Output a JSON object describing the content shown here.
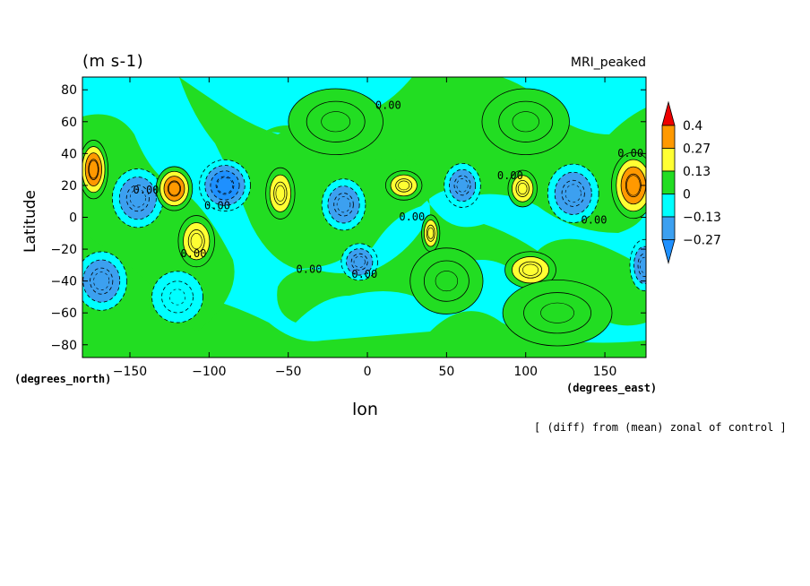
{
  "chart_data": {
    "type": "heatmap",
    "title_left": "(m s-1)",
    "title_right": "MRI_peaked",
    "xlabel": "lon",
    "ylabel": "Latitude",
    "x_units": "(degrees_east)",
    "y_units": "(degrees_north)",
    "caption": "[ (diff) from (mean) zonal of control ]",
    "xlim": [
      -180,
      176
    ],
    "ylim": [
      -88,
      88
    ],
    "x_ticks": [
      -150,
      -100,
      -50,
      0,
      50,
      100,
      150
    ],
    "y_ticks": [
      80,
      60,
      40,
      20,
      0,
      -20,
      -40,
      -60,
      -80
    ],
    "contour_label": "0.00",
    "colorbar": {
      "levels": [
        -0.27,
        -0.13,
        0,
        0.13,
        0.27,
        0.4
      ],
      "labels": [
        "0.4",
        "0.27",
        "0.13",
        "0",
        "−0.13",
        "−0.27"
      ],
      "colors": {
        "below_-0.27": "#1e90ff",
        "-0.27_to_-0.13": "#3ca0f0",
        "-0.13_to_0": "#00ffff",
        "0_to_0.13": "#22dd22",
        "0.13_to_0.27": "#ffff33",
        "0.27_to_0.4": "#ff9900",
        "above_0.4": "#ee0000"
      }
    },
    "blobs": [
      {
        "lon": -173,
        "lat": 30,
        "value": 0.3,
        "rx": 8,
        "ry": 16
      },
      {
        "lon": -145,
        "lat": 12,
        "value": -0.22,
        "rx": 14,
        "ry": 16
      },
      {
        "lon": -122,
        "lat": 18,
        "value": 0.34,
        "rx": 10,
        "ry": 12
      },
      {
        "lon": -108,
        "lat": -15,
        "value": 0.18,
        "rx": 10,
        "ry": 14
      },
      {
        "lon": -90,
        "lat": 20,
        "value": -0.3,
        "rx": 14,
        "ry": 14
      },
      {
        "lon": -55,
        "lat": 15,
        "value": 0.2,
        "rx": 8,
        "ry": 14
      },
      {
        "lon": -168,
        "lat": -40,
        "value": -0.22,
        "rx": 14,
        "ry": 16
      },
      {
        "lon": -15,
        "lat": 8,
        "value": -0.18,
        "rx": 12,
        "ry": 14
      },
      {
        "lon": -5,
        "lat": -28,
        "value": -0.2,
        "rx": 10,
        "ry": 10
      },
      {
        "lon": 23,
        "lat": 20,
        "value": 0.18,
        "rx": 10,
        "ry": 8
      },
      {
        "lon": 40,
        "lat": -10,
        "value": 0.16,
        "rx": 5,
        "ry": 10
      },
      {
        "lon": 60,
        "lat": 20,
        "value": -0.18,
        "rx": 10,
        "ry": 12
      },
      {
        "lon": 98,
        "lat": 18,
        "value": 0.18,
        "rx": 8,
        "ry": 10
      },
      {
        "lon": 103,
        "lat": -33,
        "value": 0.18,
        "rx": 14,
        "ry": 10
      },
      {
        "lon": 130,
        "lat": 15,
        "value": -0.25,
        "rx": 14,
        "ry": 16
      },
      {
        "lon": 168,
        "lat": 20,
        "value": 0.38,
        "rx": 12,
        "ry": 18
      },
      {
        "lon": 175,
        "lat": -30,
        "value": -0.18,
        "rx": 8,
        "ry": 14
      },
      {
        "lon": -120,
        "lat": -50,
        "value": -0.1,
        "rx": 14,
        "ry": 14
      },
      {
        "lon": 50,
        "lat": -40,
        "value": 0.08,
        "rx": 20,
        "ry": 18
      },
      {
        "lon": 100,
        "lat": 60,
        "value": 0.06,
        "rx": 24,
        "ry": 18
      },
      {
        "lon": -20,
        "lat": 60,
        "value": 0.06,
        "rx": 26,
        "ry": 18
      },
      {
        "lon": 120,
        "lat": -60,
        "value": 0.06,
        "rx": 30,
        "ry": 18
      }
    ]
  }
}
